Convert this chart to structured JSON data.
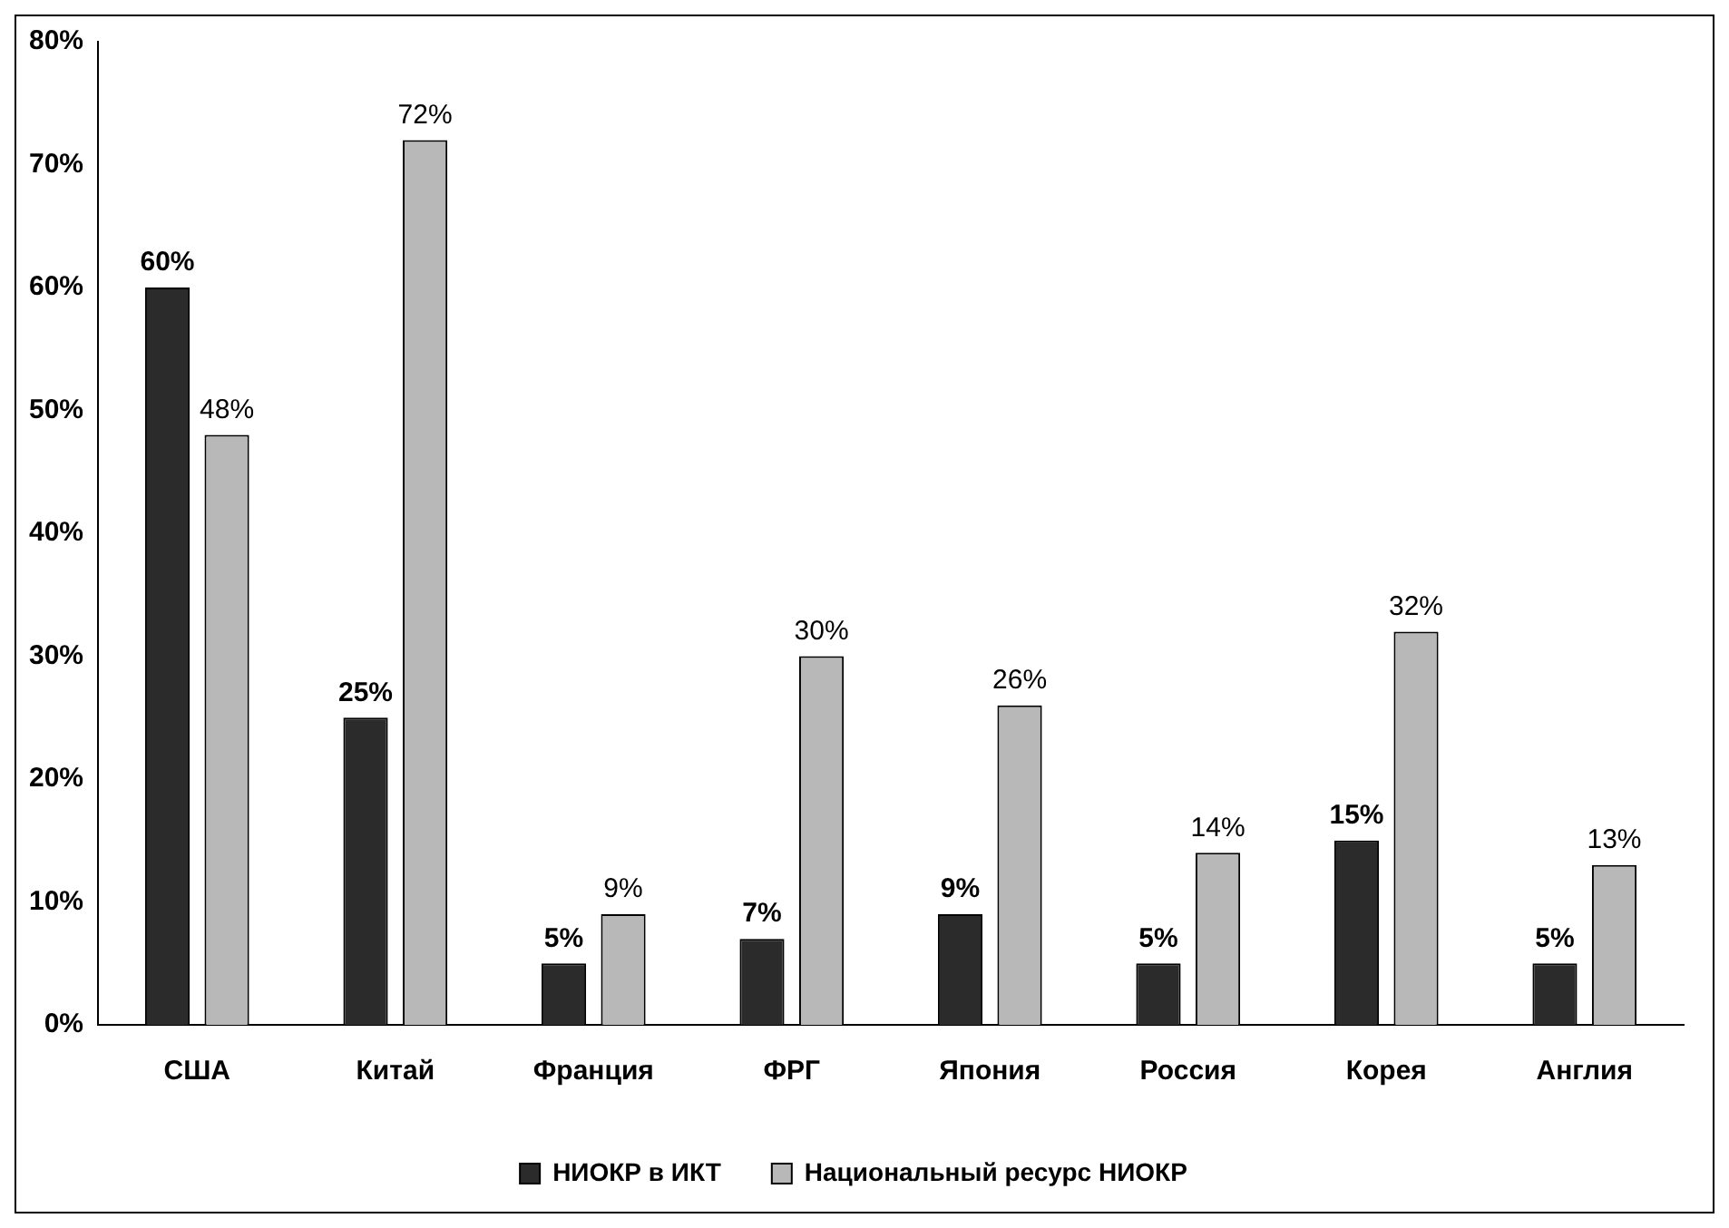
{
  "chart_data": {
    "type": "bar",
    "categories": [
      "США",
      "Китай",
      "Франция",
      "ФРГ",
      "Япония",
      "Россия",
      "Корея",
      "Англия"
    ],
    "series": [
      {
        "name": "НИОКР в ИКТ",
        "color": "#2b2b2b",
        "values": [
          60,
          25,
          5,
          7,
          9,
          5,
          15,
          5
        ],
        "value_labels": [
          "60%",
          "25%",
          "5%",
          "7%",
          "9%",
          "5%",
          "15%",
          "5%"
        ]
      },
      {
        "name": "Национальный ресурс НИОКР",
        "color": "#b8b8b8",
        "values": [
          48,
          72,
          9,
          30,
          26,
          14,
          32,
          13
        ],
        "value_labels": [
          "48%",
          "72%",
          "9%",
          "30%",
          "26%",
          "14%",
          "32%",
          "13%"
        ]
      }
    ],
    "ylim": [
      0,
      80
    ],
    "yticks": [
      {
        "value": 0,
        "label": "0%"
      },
      {
        "value": 10,
        "label": "10%"
      },
      {
        "value": 20,
        "label": "20%"
      },
      {
        "value": 30,
        "label": "30%"
      },
      {
        "value": 40,
        "label": "40%"
      },
      {
        "value": 50,
        "label": "50%"
      },
      {
        "value": 60,
        "label": "60%"
      },
      {
        "value": 70,
        "label": "70%"
      },
      {
        "value": 80,
        "label": "80%"
      }
    ],
    "grid": false,
    "legend": "bottom"
  }
}
